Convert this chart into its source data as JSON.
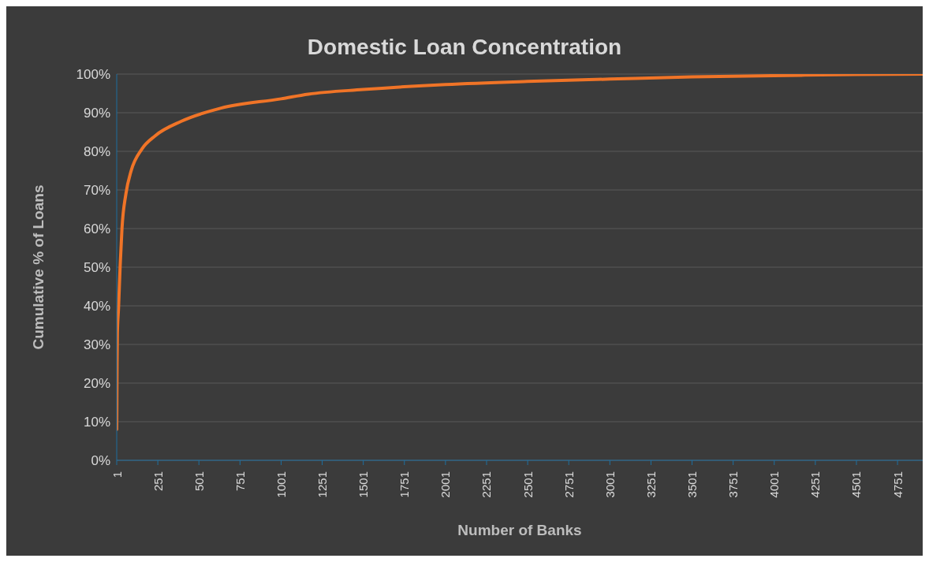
{
  "chart_data": {
    "type": "line",
    "title": "Domestic Loan Concentration",
    "xlabel": "Number of Banks",
    "ylabel": "Cumulative % of Loans",
    "x": [
      1,
      3,
      5,
      12,
      22,
      33,
      57,
      89,
      154,
      234,
      395,
      636,
      1001,
      1166,
      1500,
      2001,
      2500,
      3001,
      3500,
      4001,
      4500,
      4904
    ],
    "series": [
      {
        "color": "#f07427",
        "values": [
          8,
          25,
          33,
          39.4,
          50.4,
          60,
          69,
          75,
          80.6,
          84,
          87.8,
          91.2,
          93.6,
          94.8,
          96,
          97.3,
          98.1,
          98.7,
          99.3,
          99.6,
          99.9,
          100
        ]
      }
    ],
    "xlim": [
      1,
      4904
    ],
    "xticks": [
      1,
      251,
      501,
      751,
      1001,
      1251,
      1501,
      1751,
      2001,
      2251,
      2501,
      2751,
      3001,
      3251,
      3501,
      3751,
      4001,
      4251,
      4501,
      4751
    ],
    "ylim": [
      0,
      100
    ],
    "yticks": [
      {
        "value": 0,
        "label": "0%"
      },
      {
        "value": 10,
        "label": "10%"
      },
      {
        "value": 20,
        "label": "20%"
      },
      {
        "value": 30,
        "label": "30%"
      },
      {
        "value": 40,
        "label": "40%"
      },
      {
        "value": 50,
        "label": "50%"
      },
      {
        "value": 60,
        "label": "60%"
      },
      {
        "value": 70,
        "label": "70%"
      },
      {
        "value": 80,
        "label": "80%"
      },
      {
        "value": 90,
        "label": "90%"
      },
      {
        "value": 100,
        "label": "100%"
      }
    ],
    "grid": "y",
    "marker": "none",
    "line_style": "solid"
  }
}
